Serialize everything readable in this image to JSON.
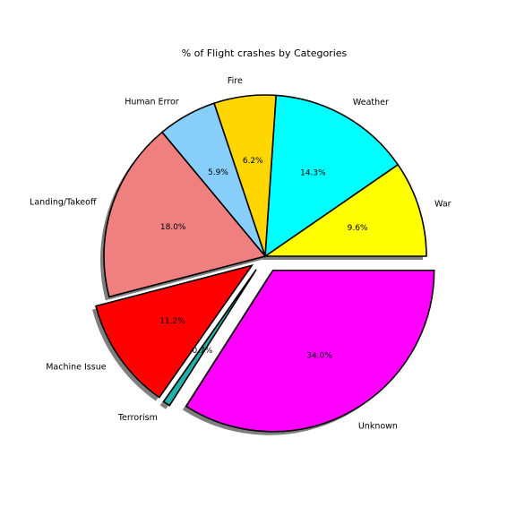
{
  "chart_data": {
    "type": "pie",
    "title": "% of Flight crashes by Categories",
    "autopct_format": "%1.1f%%",
    "shadow": true,
    "start_angle_deg": 0,
    "slices": [
      {
        "label": "War",
        "value": 9.6,
        "color": "#ffff00",
        "explode": 0.0
      },
      {
        "label": "Weather",
        "value": 14.3,
        "color": "#00ffff",
        "explode": 0.0
      },
      {
        "label": "Fire",
        "value": 6.2,
        "color": "#ffd700",
        "explode": 0.0
      },
      {
        "label": "Human Error",
        "value": 5.9,
        "color": "#87cefa",
        "explode": 0.0
      },
      {
        "label": "Landing/Takeoff",
        "value": 18.0,
        "color": "#f08080",
        "explode": 0.0
      },
      {
        "label": "Machine Issue",
        "value": 11.2,
        "color": "#ff0000",
        "explode": 0.1
      },
      {
        "label": "Terrorism",
        "value": 0.7,
        "color": "#20b2aa",
        "explode": 0.1
      },
      {
        "label": "Unknown",
        "value": 34.0,
        "color": "#ff00ff",
        "explode": 0.1
      }
    ]
  }
}
